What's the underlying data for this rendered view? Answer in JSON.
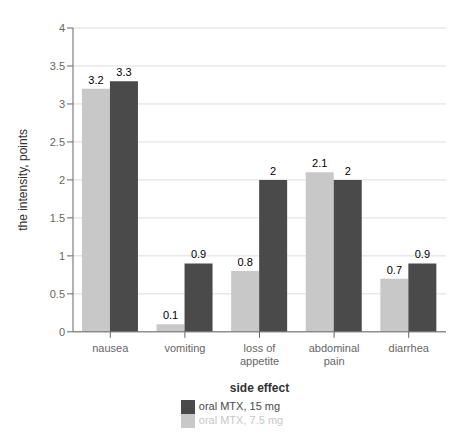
{
  "chart_data": {
    "type": "bar",
    "categories": [
      "nausea",
      "vomiting",
      "loss of\nappetite",
      "abdominal\npain",
      "diarrhea"
    ],
    "series": [
      {
        "name": "oral MTX, 7.5 mg",
        "color": "#c8c8c8",
        "values": [
          3.2,
          0.1,
          0.8,
          2.1,
          0.7
        ]
      },
      {
        "name": "oral MTX, 15 mg",
        "color": "#4a4a4a",
        "values": [
          3.3,
          0.9,
          2.0,
          2.0,
          0.9
        ]
      }
    ],
    "xlabel": "side effect",
    "ylabel": "the intensity, points",
    "ylim": [
      0,
      4
    ],
    "yticks": [
      0,
      0.5,
      1,
      1.5,
      2,
      2.5,
      3,
      3.5,
      4
    ],
    "grid": true,
    "legend": "bottom",
    "data_labels": true
  }
}
